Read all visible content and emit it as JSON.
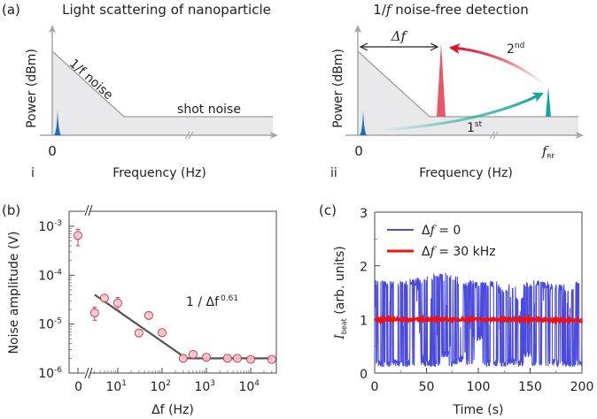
{
  "panel_a": {
    "label": "(a)",
    "sub_i": {
      "sublabel": "i",
      "title": "Light scattering of nanoparticle",
      "ylabel": "Power (dBm)",
      "xlabel": "Frequency (Hz)",
      "zero_label": "0",
      "one_over_f_label": "1/f noise",
      "shot_noise_label": "shot noise"
    },
    "sub_ii": {
      "sublabel": "ii",
      "title_prefix": "1/",
      "title_f": "f",
      "title_suffix": " noise-free detection",
      "ylabel": "Power (dBm)",
      "xlabel": "Frequency (Hz)",
      "zero_label": "0",
      "delta_f_label": "Δf",
      "frf_label": "f",
      "frf_sub": "RF",
      "first_label": "1",
      "first_sup": "st",
      "second_label": "2",
      "second_sup": "nd"
    },
    "colors": {
      "signal_blue": "#1a6fc0",
      "shifted_red": "#e8586a",
      "rf_teal": "#13a89e",
      "arrow_red": "#e0102a",
      "shade": "#e9e9eb",
      "axis_gray": "#a6a6a6"
    }
  },
  "chart_data": [
    {
      "type": "scatter",
      "panel": "(b)",
      "xlabel": "Δf (Hz)",
      "ylabel": "Noise amplitude (V)",
      "xscale": "log-with-zero-break",
      "yscale": "log",
      "xticks": [
        "0",
        "10^1",
        "10^2",
        "10^3",
        "10^4"
      ],
      "yticks": [
        "10^-3",
        "10^-4",
        "10^-5",
        "10^-6"
      ],
      "ylim": [
        1e-06,
        0.002
      ],
      "xlim": [
        2,
        38000
      ],
      "annotation": {
        "base": "1 / Δf",
        "exponent": "0.61"
      },
      "points": [
        {
          "x": 0,
          "y": 0.00065,
          "err_lo": 0.00025,
          "err_hi": 0.00022
        },
        {
          "x": 3,
          "y": 1.7e-05,
          "err_lo": 5e-06,
          "err_hi": 5e-06
        },
        {
          "x": 5,
          "y": 3.4e-05,
          "err_lo": 4e-06,
          "err_hi": 3e-06
        },
        {
          "x": 10,
          "y": 2.7e-05,
          "err_lo": 8e-06,
          "err_hi": 8e-06
        },
        {
          "x": 30,
          "y": 6.6e-06,
          "err_lo": 1e-06,
          "err_hi": 1e-06
        },
        {
          "x": 50,
          "y": 1.5e-05,
          "err_lo": 2e-06,
          "err_hi": 2e-06
        },
        {
          "x": 100,
          "y": 6.7e-06,
          "err_lo": 6e-07,
          "err_hi": 6e-07
        },
        {
          "x": 300,
          "y": 2e-06,
          "err_lo": 2e-07,
          "err_hi": 2e-07
        },
        {
          "x": 500,
          "y": 2.4e-06,
          "err_lo": 3e-07,
          "err_hi": 3e-07
        },
        {
          "x": 1000,
          "y": 2.1e-06,
          "err_lo": 2e-07,
          "err_hi": 2e-07
        },
        {
          "x": 3000,
          "y": 2e-06,
          "err_lo": 1.5e-07,
          "err_hi": 1.5e-07
        },
        {
          "x": 5000,
          "y": 2e-06,
          "err_lo": 1.5e-07,
          "err_hi": 1.5e-07
        },
        {
          "x": 10000,
          "y": 1.9e-06,
          "err_lo": 1.5e-07,
          "err_hi": 1.5e-07
        },
        {
          "x": 30000,
          "y": 1.9e-06,
          "err_lo": 1.5e-07,
          "err_hi": 1.5e-07
        }
      ],
      "fit_line": [
        {
          "x": 3,
          "y": 4e-05
        },
        {
          "x": 350,
          "y": 2e-06
        },
        {
          "x": 30000,
          "y": 2e-06
        }
      ],
      "colors": {
        "marker_fill": "#f7cdd3",
        "marker_edge": "#d2384f",
        "fit": "#555555"
      }
    },
    {
      "type": "line",
      "panel": "(c)",
      "xlabel": "Time (s)",
      "ylabel_main": "I",
      "ylabel_sub": "beat",
      "ylabel_suffix": " (arb. units)",
      "xlim": [
        0,
        200
      ],
      "ylim": [
        0,
        3
      ],
      "xticks": [
        "0",
        "50",
        "100",
        "150",
        "200"
      ],
      "yticks": [
        "0",
        "1",
        "2",
        "3"
      ],
      "legend_position": "top-left",
      "series": [
        {
          "name": "Δf = 0",
          "name_prefix": "Δ",
          "name_f": "f",
          "name_suffix": " = 0",
          "color": "#4a4ade",
          "description": "telegraph-like switching between ~0.1 and ~1.7",
          "levels_high": [
            1.75,
            1.72,
            1.7,
            1.72,
            1.75,
            1.78,
            1.8,
            1.85,
            1.88,
            1.82,
            1.7,
            1.72,
            1.7,
            1.7,
            1.72,
            1.6,
            1.65,
            1.4,
            1.7,
            1.72,
            1.7,
            1.68,
            1.65,
            1.6,
            1.7
          ],
          "levels_low": [
            0.12,
            0.12,
            0.13,
            0.12,
            0.12,
            0.14,
            0.12,
            0.12,
            0.3,
            0.12,
            0.2,
            0.15,
            0.6,
            0.12,
            0.12,
            0.12,
            0.15,
            0.12,
            0.3,
            0.12,
            0.12,
            0.15,
            0.12,
            0.12,
            0.12
          ]
        },
        {
          "name": "Δf = 30 kHz",
          "name_prefix": "Δ",
          "name_f": "f",
          "name_suffix": " = 30 kHz",
          "color": "#ee1111",
          "x": [
            0,
            50,
            100,
            150,
            200
          ],
          "y": [
            1.0,
            1.0,
            1.0,
            1.0,
            0.98
          ]
        }
      ]
    }
  ],
  "panel_b": {
    "label": "(b)"
  },
  "panel_c": {
    "label": "(c)"
  }
}
